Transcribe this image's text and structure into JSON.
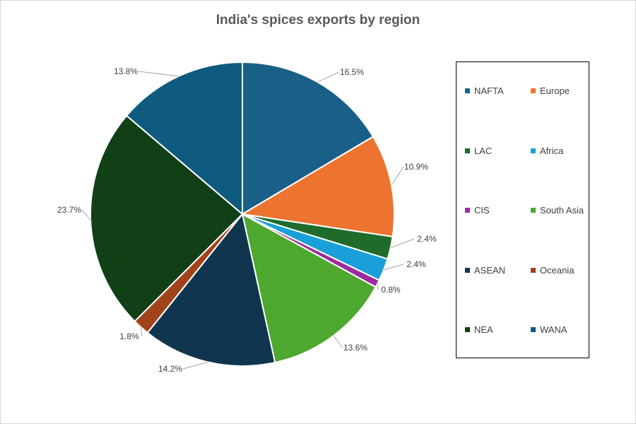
{
  "chart_data": {
    "type": "pie",
    "title": "India's spices exports by region",
    "slices": [
      {
        "name": "NAFTA",
        "value": 16.5,
        "label": "16.5%",
        "color": "#1a5f87"
      },
      {
        "name": "Europe",
        "value": 10.9,
        "label": "10.9%",
        "color": "#ec7430"
      },
      {
        "name": "LAC",
        "value": 2.4,
        "label": "2.4%",
        "color": "#1f6b2b"
      },
      {
        "name": "Africa",
        "value": 2.4,
        "label": "2.4%",
        "color": "#1aa0d8"
      },
      {
        "name": "CIS",
        "value": 0.8,
        "label": "0.8%",
        "color": "#9c2aa0"
      },
      {
        "name": "South Asia",
        "value": 13.6,
        "label": "13.6%",
        "color": "#4ea72e"
      },
      {
        "name": "ASEAN",
        "value": 14.2,
        "label": "14.2%",
        "color": "#10364f"
      },
      {
        "name": "Oceania",
        "value": 1.8,
        "label": "1.8%",
        "color": "#a0431a"
      },
      {
        "name": "NEA",
        "value": 23.7,
        "label": "23.7%",
        "color": "#113f16"
      },
      {
        "name": "WANA",
        "value": 13.8,
        "label": "13.8%",
        "color": "#0f5b80"
      }
    ],
    "legend_position": "right",
    "legend": [
      "NAFTA",
      "Europe",
      "LAC",
      "Africa",
      "CIS",
      "South Asia",
      "ASEAN",
      "Oceania",
      "NEA",
      "WANA"
    ]
  }
}
